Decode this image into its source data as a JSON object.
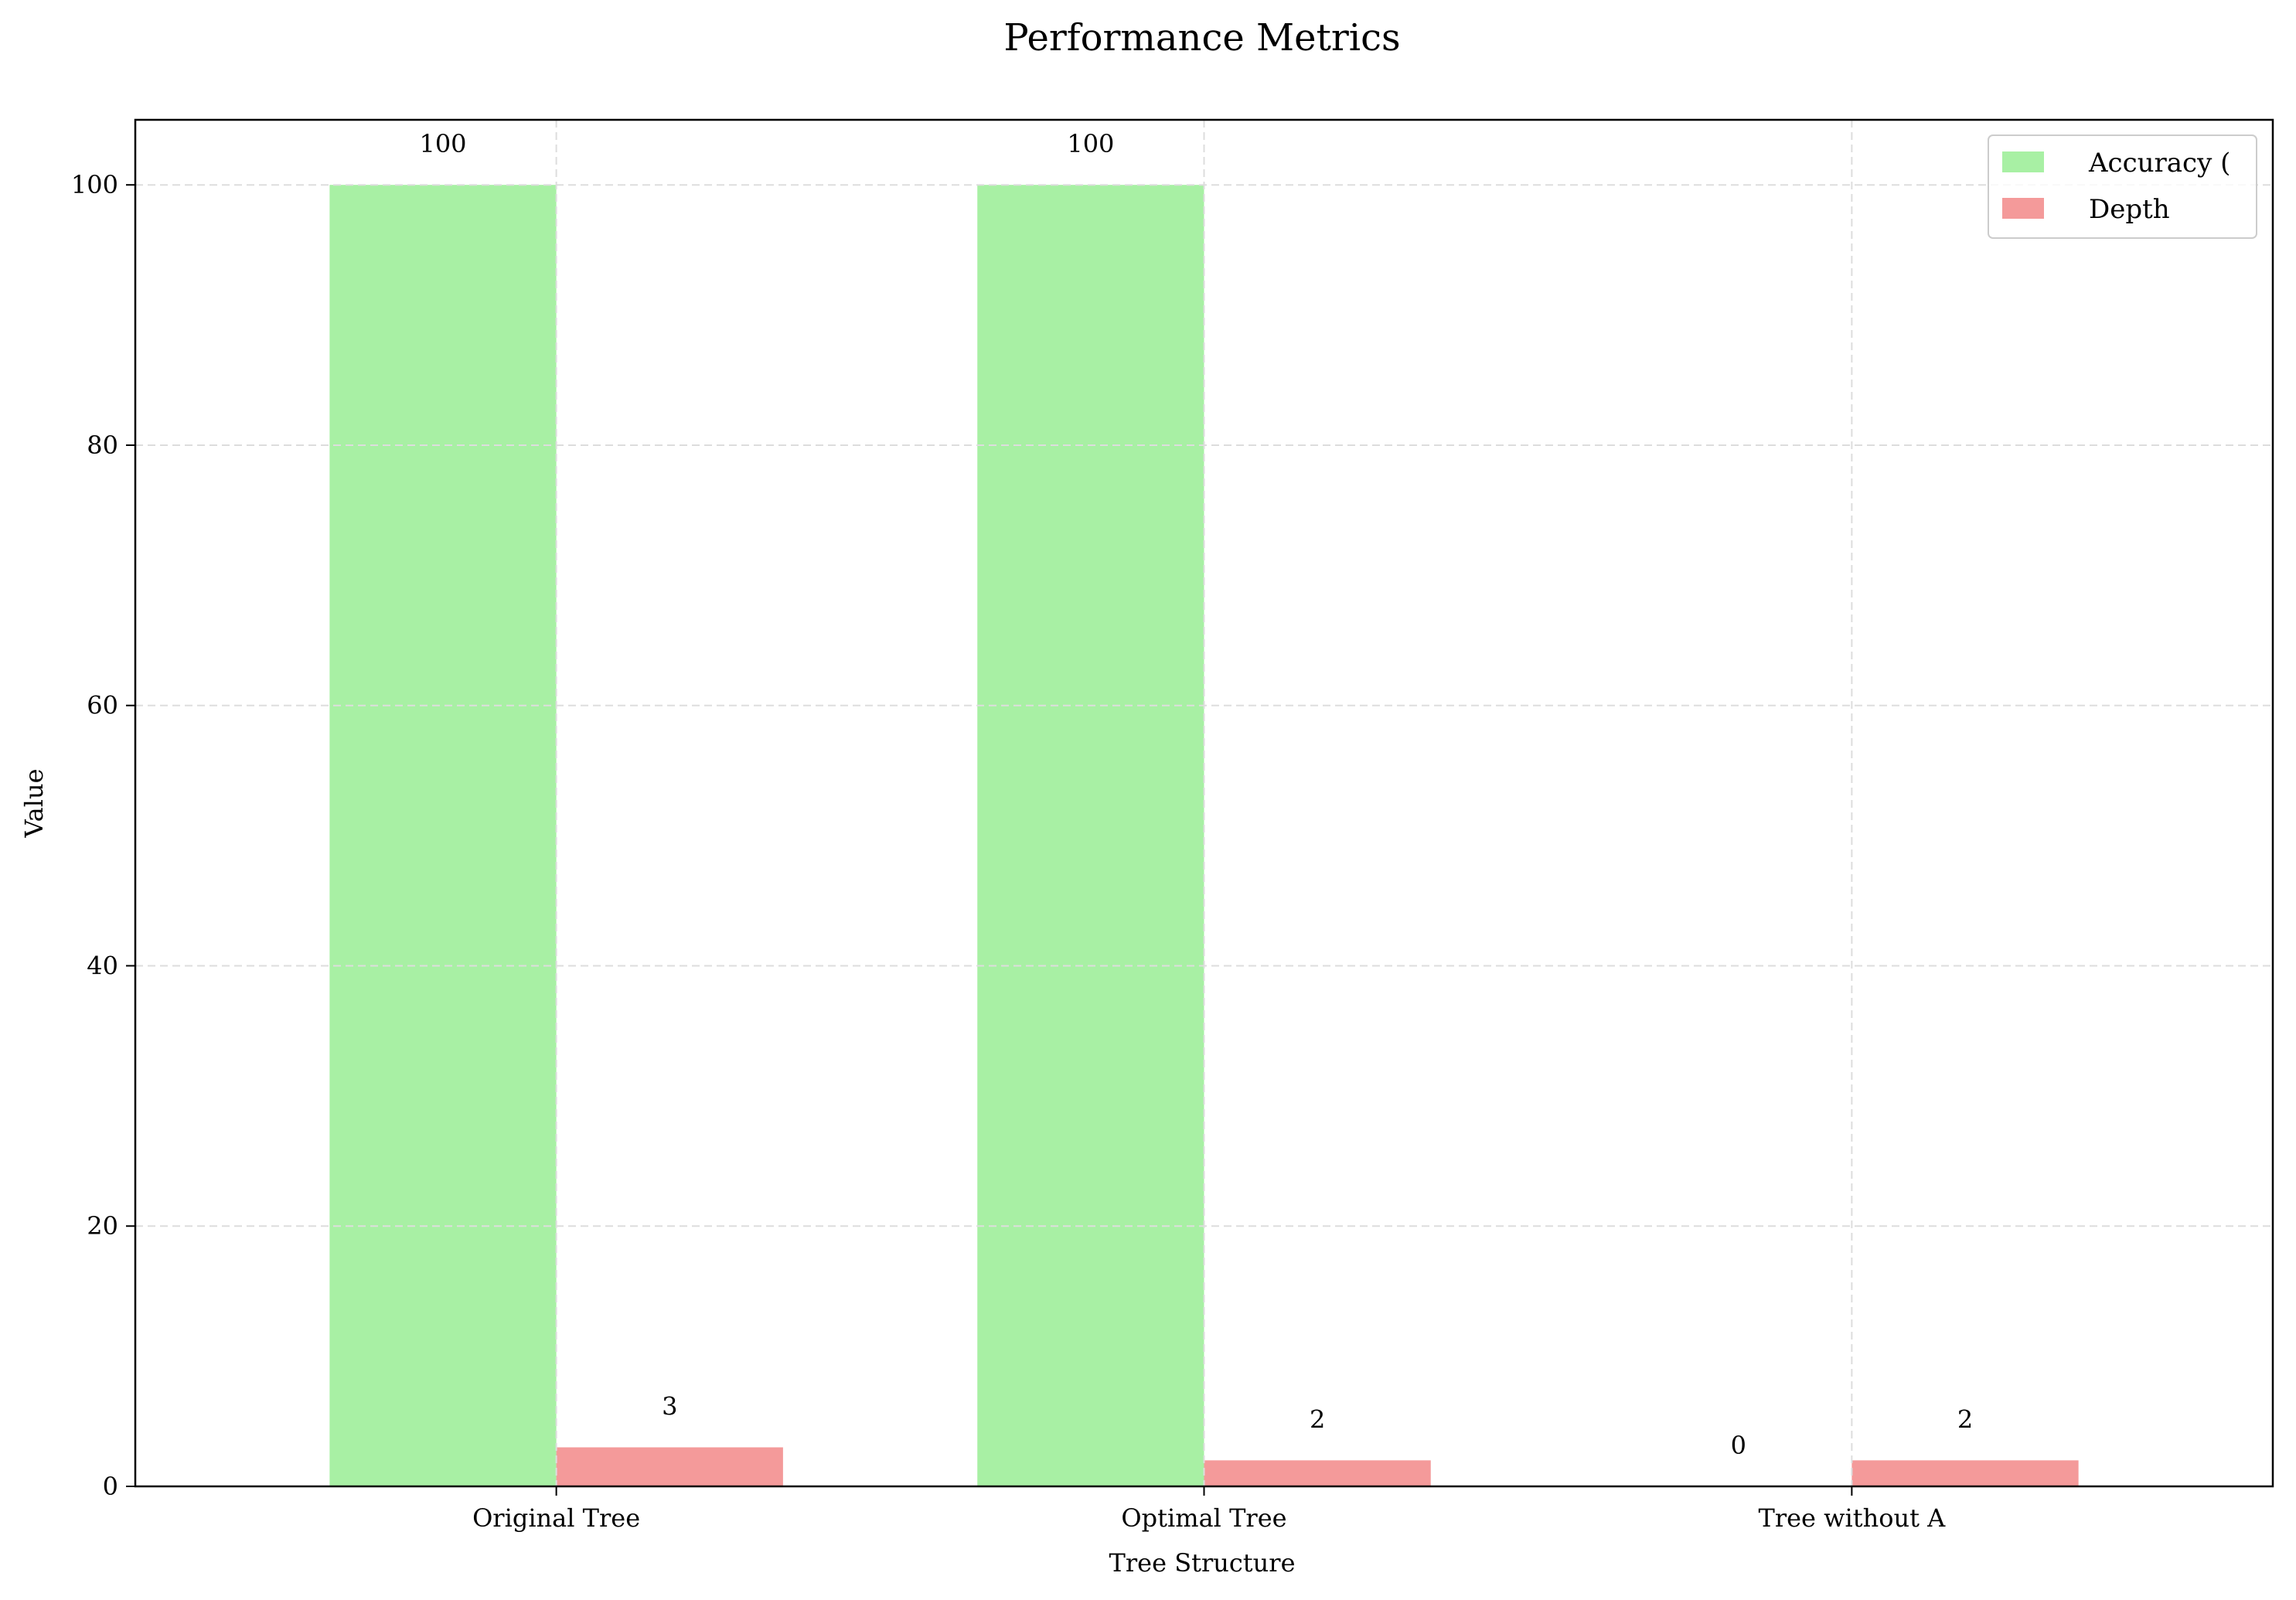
{
  "chart_data": {
    "type": "bar",
    "title": "Performance Metrics",
    "xlabel": "Tree Structure",
    "ylabel": "Value",
    "categories": [
      "Original Tree",
      "Optimal Tree",
      "Tree without A"
    ],
    "series": [
      {
        "name": "Accuracy (",
        "values": [
          100,
          100,
          0
        ],
        "color": "#a8f0a4"
      },
      {
        "name": "Depth",
        "values": [
          3,
          2,
          2
        ],
        "color": "#f49a9a"
      }
    ],
    "ylim": [
      0,
      105
    ],
    "yticks": [
      0,
      20,
      40,
      60,
      80,
      100
    ],
    "grid": true,
    "legend_position": "top-right"
  }
}
